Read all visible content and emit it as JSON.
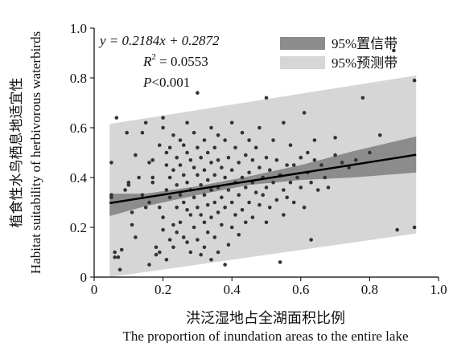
{
  "chart_data": {
    "type": "scatter",
    "title": "",
    "xlabel": "洪泛湿地占全湖面积比例",
    "xlabel_en": "The proportion of inundation areas to the entire lake",
    "ylabel": "植食性水鸟栖息地适宜性",
    "ylabel_en": "Habitat suitability of herbivorous waterbirds",
    "xlim": [
      0,
      1.0
    ],
    "ylim": [
      0,
      1.0
    ],
    "xticks": [
      "0",
      "0.2",
      "0.4",
      "0.6",
      "0.8",
      "1.0"
    ],
    "yticks": [
      "0",
      "0.2",
      "0.4",
      "0.6",
      "0.8",
      "1.0"
    ],
    "grid": false,
    "legend_position": "top-right",
    "annotations": {
      "equation": "y = 0.2184x + 0.2872",
      "r2_prefix": "R",
      "r2_exp": "2",
      "r2_value": " = 0.0553",
      "p_prefix": "P",
      "p_value": "<0.001"
    },
    "legend": [
      {
        "label": "95%置信带",
        "color": "#8c8c8c"
      },
      {
        "label": "95%预测带",
        "color": "#d6d6d6"
      }
    ],
    "fit_line": {
      "slope": 0.2184,
      "intercept": 0.2872,
      "x_range": [
        0.045,
        0.935
      ],
      "color": "#000000"
    },
    "confidence_band": {
      "x": [
        0.045,
        0.15,
        0.3,
        0.45,
        0.6,
        0.75,
        0.935
      ],
      "lower": [
        0.245,
        0.285,
        0.33,
        0.37,
        0.39,
        0.4,
        0.42
      ],
      "upper": [
        0.335,
        0.335,
        0.365,
        0.405,
        0.45,
        0.505,
        0.565
      ],
      "color": "#8c8c8c"
    },
    "prediction_band": {
      "x": [
        0.045,
        0.935
      ],
      "lower": [
        0.0,
        0.175
      ],
      "upper": [
        0.615,
        0.81
      ],
      "color": "#d6d6d6"
    },
    "point_color": "#333333",
    "points": [
      [
        0.05,
        0.46
      ],
      [
        0.05,
        0.33
      ],
      [
        0.05,
        0.32
      ],
      [
        0.06,
        0.1
      ],
      [
        0.06,
        0.08
      ],
      [
        0.065,
        0.64
      ],
      [
        0.07,
        0.08
      ],
      [
        0.075,
        0.03
      ],
      [
        0.08,
        0.11
      ],
      [
        0.09,
        0.35
      ],
      [
        0.095,
        0.58
      ],
      [
        0.1,
        0.38
      ],
      [
        0.1,
        0.37
      ],
      [
        0.11,
        0.26
      ],
      [
        0.11,
        0.21
      ],
      [
        0.12,
        0.49
      ],
      [
        0.12,
        0.16
      ],
      [
        0.13,
        0.4
      ],
      [
        0.14,
        0.58
      ],
      [
        0.14,
        0.33
      ],
      [
        0.15,
        0.62
      ],
      [
        0.15,
        0.28
      ],
      [
        0.16,
        0.46
      ],
      [
        0.16,
        0.05
      ],
      [
        0.16,
        0.3
      ],
      [
        0.17,
        0.47
      ],
      [
        0.17,
        0.4
      ],
      [
        0.17,
        0.38
      ],
      [
        0.18,
        0.12
      ],
      [
        0.18,
        0.09
      ],
      [
        0.19,
        0.53
      ],
      [
        0.19,
        0.28
      ],
      [
        0.19,
        0.1
      ],
      [
        0.2,
        0.64
      ],
      [
        0.2,
        0.6
      ],
      [
        0.2,
        0.24
      ],
      [
        0.2,
        0.19
      ],
      [
        0.21,
        0.5
      ],
      [
        0.21,
        0.45
      ],
      [
        0.21,
        0.35
      ],
      [
        0.21,
        0.07
      ],
      [
        0.22,
        0.52
      ],
      [
        0.22,
        0.4
      ],
      [
        0.22,
        0.32
      ],
      [
        0.22,
        0.15
      ],
      [
        0.23,
        0.57
      ],
      [
        0.23,
        0.43
      ],
      [
        0.23,
        0.21
      ],
      [
        0.23,
        0.12
      ],
      [
        0.24,
        0.48
      ],
      [
        0.24,
        0.37
      ],
      [
        0.24,
        0.28
      ],
      [
        0.24,
        0.18
      ],
      [
        0.25,
        0.55
      ],
      [
        0.25,
        0.45
      ],
      [
        0.25,
        0.33
      ],
      [
        0.25,
        0.22
      ],
      [
        0.26,
        0.53
      ],
      [
        0.26,
        0.41
      ],
      [
        0.26,
        0.3
      ],
      [
        0.26,
        0.16
      ],
      [
        0.27,
        0.62
      ],
      [
        0.27,
        0.5
      ],
      [
        0.27,
        0.38
      ],
      [
        0.27,
        0.27
      ],
      [
        0.27,
        0.14
      ],
      [
        0.28,
        0.47
      ],
      [
        0.28,
        0.35
      ],
      [
        0.28,
        0.25
      ],
      [
        0.28,
        0.1
      ],
      [
        0.29,
        0.58
      ],
      [
        0.29,
        0.44
      ],
      [
        0.29,
        0.32
      ],
      [
        0.29,
        0.2
      ],
      [
        0.3,
        0.74
      ],
      [
        0.3,
        0.52
      ],
      [
        0.3,
        0.41
      ],
      [
        0.3,
        0.28
      ],
      [
        0.3,
        0.15
      ],
      [
        0.31,
        0.48
      ],
      [
        0.31,
        0.37
      ],
      [
        0.31,
        0.25
      ],
      [
        0.31,
        0.09
      ],
      [
        0.32,
        0.55
      ],
      [
        0.32,
        0.43
      ],
      [
        0.32,
        0.33
      ],
      [
        0.32,
        0.22
      ],
      [
        0.32,
        0.12
      ],
      [
        0.33,
        0.5
      ],
      [
        0.33,
        0.39
      ],
      [
        0.33,
        0.29
      ],
      [
        0.33,
        0.18
      ],
      [
        0.34,
        0.6
      ],
      [
        0.34,
        0.46
      ],
      [
        0.34,
        0.35
      ],
      [
        0.34,
        0.24
      ],
      [
        0.34,
        0.07
      ],
      [
        0.35,
        0.52
      ],
      [
        0.35,
        0.41
      ],
      [
        0.35,
        0.3
      ],
      [
        0.35,
        0.16
      ],
      [
        0.36,
        0.57
      ],
      [
        0.36,
        0.47
      ],
      [
        0.36,
        0.36
      ],
      [
        0.36,
        0.26
      ],
      [
        0.36,
        0.1
      ],
      [
        0.37,
        0.44
      ],
      [
        0.37,
        0.32
      ],
      [
        0.37,
        0.21
      ],
      [
        0.38,
        0.55
      ],
      [
        0.38,
        0.4
      ],
      [
        0.38,
        0.28
      ],
      [
        0.38,
        0.05
      ],
      [
        0.39,
        0.48
      ],
      [
        0.39,
        0.35
      ],
      [
        0.39,
        0.13
      ],
      [
        0.4,
        0.62
      ],
      [
        0.4,
        0.43
      ],
      [
        0.4,
        0.3
      ],
      [
        0.4,
        0.2
      ],
      [
        0.41,
        0.52
      ],
      [
        0.41,
        0.38
      ],
      [
        0.41,
        0.25
      ],
      [
        0.42,
        0.46
      ],
      [
        0.42,
        0.33
      ],
      [
        0.42,
        0.17
      ],
      [
        0.43,
        0.58
      ],
      [
        0.43,
        0.4
      ],
      [
        0.43,
        0.27
      ],
      [
        0.44,
        0.49
      ],
      [
        0.44,
        0.36
      ],
      [
        0.44,
        0.22
      ],
      [
        0.45,
        0.55
      ],
      [
        0.45,
        0.42
      ],
      [
        0.45,
        0.3
      ],
      [
        0.46,
        0.47
      ],
      [
        0.46,
        0.38
      ],
      [
        0.46,
        0.24
      ],
      [
        0.47,
        0.52
      ],
      [
        0.47,
        0.34
      ],
      [
        0.48,
        0.6
      ],
      [
        0.48,
        0.44
      ],
      [
        0.48,
        0.29
      ],
      [
        0.49,
        0.4
      ],
      [
        0.49,
        0.33
      ],
      [
        0.5,
        0.72
      ],
      [
        0.5,
        0.48
      ],
      [
        0.5,
        0.36
      ],
      [
        0.5,
        0.22
      ],
      [
        0.51,
        0.43
      ],
      [
        0.51,
        0.28
      ],
      [
        0.52,
        0.55
      ],
      [
        0.52,
        0.38
      ],
      [
        0.53,
        0.47
      ],
      [
        0.53,
        0.31
      ],
      [
        0.54,
        0.41
      ],
      [
        0.54,
        0.06
      ],
      [
        0.55,
        0.62
      ],
      [
        0.55,
        0.35
      ],
      [
        0.55,
        0.25
      ],
      [
        0.56,
        0.45
      ],
      [
        0.56,
        0.32
      ],
      [
        0.57,
        0.53
      ],
      [
        0.57,
        0.38
      ],
      [
        0.58,
        0.3
      ],
      [
        0.58,
        0.45
      ],
      [
        0.59,
        0.4
      ],
      [
        0.6,
        0.48
      ],
      [
        0.6,
        0.36
      ],
      [
        0.61,
        0.66
      ],
      [
        0.61,
        0.28
      ],
      [
        0.62,
        0.5
      ],
      [
        0.62,
        0.42
      ],
      [
        0.63,
        0.15
      ],
      [
        0.63,
        0.38
      ],
      [
        0.64,
        0.55
      ],
      [
        0.64,
        0.47
      ],
      [
        0.65,
        0.35
      ],
      [
        0.66,
        0.45
      ],
      [
        0.67,
        0.4
      ],
      [
        0.68,
        0.36
      ],
      [
        0.7,
        0.49
      ],
      [
        0.7,
        0.56
      ],
      [
        0.72,
        0.46
      ],
      [
        0.74,
        0.44
      ],
      [
        0.76,
        0.47
      ],
      [
        0.78,
        0.72
      ],
      [
        0.8,
        0.5
      ],
      [
        0.83,
        0.57
      ],
      [
        0.87,
        0.91
      ],
      [
        0.88,
        0.19
      ],
      [
        0.93,
        0.79
      ],
      [
        0.93,
        0.2
      ]
    ]
  }
}
